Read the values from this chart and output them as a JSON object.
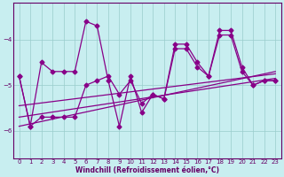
{
  "xlabel": "Windchill (Refroidissement éolien,°C)",
  "bg_color": "#c8eef0",
  "line_color": "#880088",
  "grid_color": "#99cccc",
  "axis_color": "#660066",
  "tick_color": "#660066",
  "ylim": [
    -6.6,
    -3.2
  ],
  "xlim": [
    -0.5,
    23.5
  ],
  "yticks": [
    -6,
    -5,
    -4
  ],
  "xticks": [
    0,
    1,
    2,
    3,
    4,
    5,
    6,
    7,
    8,
    9,
    10,
    11,
    12,
    13,
    14,
    15,
    16,
    17,
    18,
    19,
    20,
    21,
    22,
    23
  ],
  "line1_x": [
    0,
    1,
    2,
    3,
    4,
    5,
    6,
    7,
    8,
    9,
    10,
    11,
    12,
    13,
    14,
    15,
    16,
    17,
    18,
    19,
    20,
    21,
    22,
    23
  ],
  "line1_y": [
    -4.8,
    -5.9,
    -4.5,
    -4.7,
    -4.7,
    -4.7,
    -3.6,
    -3.7,
    -4.9,
    -5.9,
    -4.8,
    -5.6,
    -5.2,
    -5.3,
    -4.1,
    -4.1,
    -4.5,
    -4.8,
    -3.8,
    -3.8,
    -4.6,
    -5.0,
    -4.9,
    -4.9
  ],
  "line2_x": [
    0,
    1,
    2,
    3,
    4,
    5,
    6,
    7,
    8,
    9,
    10,
    11,
    12,
    13,
    14,
    15,
    16,
    17,
    18,
    19,
    20,
    21,
    22,
    23
  ],
  "line2_y": [
    -4.8,
    -5.9,
    -5.7,
    -5.7,
    -5.7,
    -5.7,
    -5.0,
    -4.9,
    -4.8,
    -5.2,
    -4.9,
    -5.4,
    -5.2,
    -5.3,
    -4.2,
    -4.2,
    -4.6,
    -4.8,
    -3.9,
    -3.9,
    -4.7,
    -5.0,
    -4.9,
    -4.9
  ],
  "trend1_x": [
    0,
    23
  ],
  "trend1_y": [
    -5.45,
    -4.75
  ],
  "trend2_x": [
    0,
    23
  ],
  "trend2_y": [
    -5.7,
    -4.85
  ],
  "trend3_x": [
    0,
    23
  ],
  "trend3_y": [
    -5.9,
    -4.7
  ]
}
